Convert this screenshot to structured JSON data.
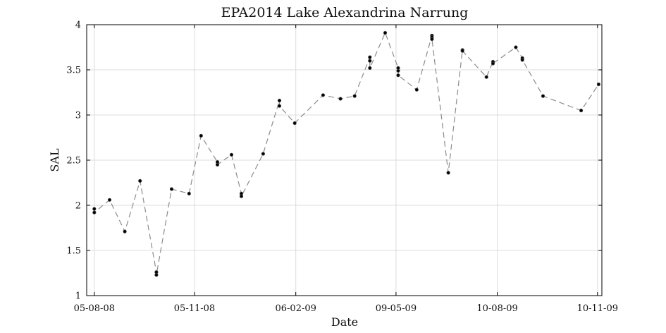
{
  "chart_data": {
    "type": "line",
    "title": "EPA2014 Lake Alexandrina Narrung",
    "xlabel": "Date",
    "ylabel": "SAL",
    "xlim": [
      "2008-07-29",
      "2009-11-14"
    ],
    "ylim": [
      1,
      4
    ],
    "x_ticks": [
      "2008-08-05",
      "2008-11-05",
      "2009-02-06",
      "2009-05-09",
      "2009-08-10",
      "2009-11-10"
    ],
    "x_tick_labels": [
      "05-08-08",
      "05-11-08",
      "06-02-09",
      "09-05-09",
      "10-08-09",
      "10-11-09"
    ],
    "y_ticks": [
      1,
      1.5,
      2,
      2.5,
      3,
      3.5,
      4
    ],
    "y_tick_labels": [
      "1",
      "1.5",
      "2",
      "2.5",
      "3",
      "3.5",
      "4"
    ],
    "grid": true,
    "line_style": "dashed",
    "line_color": "#8c8c8c",
    "marker_color": "#000000",
    "series": [
      {
        "points": [
          {
            "x": "2008-08-05",
            "y": 1.96
          },
          {
            "x": "2008-08-05",
            "y": 1.92
          },
          {
            "x": "2008-08-19",
            "y": 2.06
          },
          {
            "x": "2008-09-02",
            "y": 1.71
          },
          {
            "x": "2008-09-16",
            "y": 2.27
          },
          {
            "x": "2008-10-01",
            "y": 1.26
          },
          {
            "x": "2008-10-01",
            "y": 1.23
          },
          {
            "x": "2008-10-15",
            "y": 2.18
          },
          {
            "x": "2008-10-31",
            "y": 2.13
          },
          {
            "x": "2008-11-11",
            "y": 2.77
          },
          {
            "x": "2008-11-26",
            "y": 2.48
          },
          {
            "x": "2008-11-26",
            "y": 2.45
          },
          {
            "x": "2008-12-09",
            "y": 2.56
          },
          {
            "x": "2008-12-18",
            "y": 2.13
          },
          {
            "x": "2008-12-18",
            "y": 2.1
          },
          {
            "x": "2009-01-07",
            "y": 2.57
          },
          {
            "x": "2009-01-22",
            "y": 3.16
          },
          {
            "x": "2009-01-22",
            "y": 3.1
          },
          {
            "x": "2009-02-05",
            "y": 2.91
          },
          {
            "x": "2009-03-03",
            "y": 3.22
          },
          {
            "x": "2009-03-19",
            "y": 3.18
          },
          {
            "x": "2009-04-01",
            "y": 3.21
          },
          {
            "x": "2009-04-15",
            "y": 3.64
          },
          {
            "x": "2009-04-15",
            "y": 3.6
          },
          {
            "x": "2009-04-15",
            "y": 3.52
          },
          {
            "x": "2009-04-29",
            "y": 3.91
          },
          {
            "x": "2009-05-11",
            "y": 3.52
          },
          {
            "x": "2009-05-11",
            "y": 3.49
          },
          {
            "x": "2009-05-11",
            "y": 3.44
          },
          {
            "x": "2009-05-28",
            "y": 3.28
          },
          {
            "x": "2009-06-11",
            "y": 3.88
          },
          {
            "x": "2009-06-11",
            "y": 3.86
          },
          {
            "x": "2009-06-11",
            "y": 3.84
          },
          {
            "x": "2009-06-26",
            "y": 2.36
          },
          {
            "x": "2009-07-09",
            "y": 3.72
          },
          {
            "x": "2009-07-09",
            "y": 3.71
          },
          {
            "x": "2009-07-31",
            "y": 3.42
          },
          {
            "x": "2009-08-06",
            "y": 3.59
          },
          {
            "x": "2009-08-06",
            "y": 3.57
          },
          {
            "x": "2009-08-27",
            "y": 3.75
          },
          {
            "x": "2009-09-02",
            "y": 3.63
          },
          {
            "x": "2009-09-02",
            "y": 3.61
          },
          {
            "x": "2009-09-21",
            "y": 3.21
          },
          {
            "x": "2009-10-26",
            "y": 3.05
          },
          {
            "x": "2009-11-11",
            "y": 3.34
          }
        ]
      }
    ]
  }
}
